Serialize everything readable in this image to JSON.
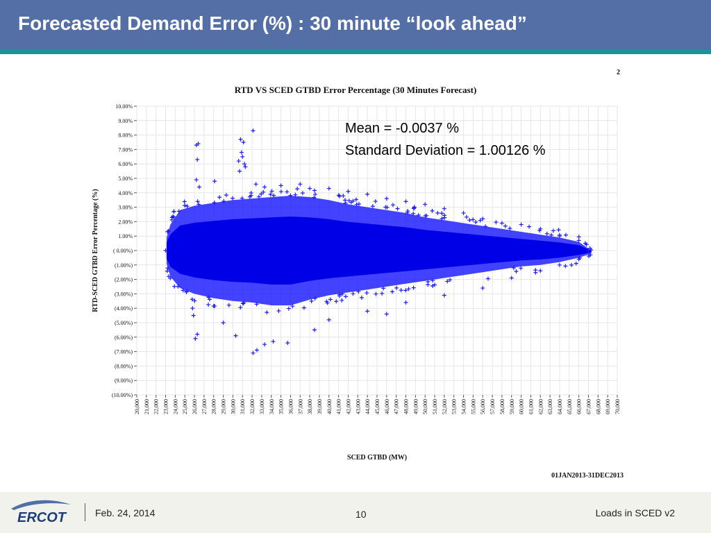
{
  "slide": {
    "title": "Forecasted Demand Error (%) : 30 minute “look ahead”",
    "page_marker": "2"
  },
  "stats": {
    "mean": "Mean = -0.0037 %",
    "std": "Standard Deviation = 1.00126 %"
  },
  "chart_data": {
    "type": "scatter",
    "title": "RTD VS SCED GTBD Error Percentage (30 Minutes Forecast)",
    "xlabel": "SCED GTBD (MW)",
    "ylabel": "RTD-SCED GTBD Error Percentage (%)",
    "xlim": [
      20000,
      70000
    ],
    "ylim": [
      -10,
      10
    ],
    "x_tick_labels": [
      "20,000",
      "21,000",
      "22,000",
      "23,000",
      "24,000",
      "25,000",
      "26,000",
      "27,000",
      "28,000",
      "29,000",
      "30,000",
      "31,000",
      "32,000",
      "33,000",
      "34,000",
      "35,000",
      "36,000",
      "37,000",
      "38,000",
      "39,000",
      "40,000",
      "41,000",
      "42,000",
      "43,000",
      "44,000",
      "45,000",
      "46,000",
      "47,000",
      "48,000",
      "49,000",
      "50,000",
      "51,000",
      "52,000",
      "53,000",
      "54,000",
      "55,000",
      "56,000",
      "57,000",
      "58,000",
      "59,000",
      "60,000",
      "61,000",
      "62,000",
      "63,000",
      "64,000",
      "65,000",
      "66,000",
      "67,000",
      "68,000",
      "69,000",
      "70,000"
    ],
    "y_tick_labels": [
      "10.00%",
      "9.00%",
      "8.00%",
      "7.00%",
      "6.00%",
      "5.00%",
      "4.00%",
      "3.00%",
      "2.00%",
      "1.00%",
      "( 0.00%)",
      "(1.00%)",
      "(2.00%)",
      "(3.00%)",
      "(4.00%)",
      "(5.00%)",
      "(6.00%)",
      "(7.00%)",
      "(8.00%)",
      "(9.00%)",
      "(10.00%)"
    ],
    "date_range": "01JAN2013-31DEC2013",
    "marker": "+",
    "marker_color": "#1a1aff",
    "grid": true,
    "series": [
      {
        "points": [
          [
            26200,
            7.3
          ],
          [
            26400,
            7.4
          ],
          [
            26300,
            6.3
          ],
          [
            30800,
            7.7
          ],
          [
            31100,
            7.5
          ],
          [
            32100,
            8.3
          ],
          [
            30900,
            6.8
          ],
          [
            31000,
            6.5
          ],
          [
            31200,
            6.0
          ],
          [
            30600,
            6.2
          ],
          [
            31300,
            5.8
          ],
          [
            30700,
            5.5
          ],
          [
            26200,
            4.9
          ],
          [
            26500,
            4.4
          ],
          [
            28100,
            4.8
          ],
          [
            32400,
            4.6
          ],
          [
            33300,
            4.4
          ],
          [
            35000,
            4.5
          ],
          [
            37000,
            4.6
          ],
          [
            38000,
            4.3
          ],
          [
            40000,
            4.3
          ],
          [
            42000,
            4.1
          ],
          [
            44000,
            3.9
          ],
          [
            46000,
            3.6
          ],
          [
            48000,
            3.4
          ],
          [
            50000,
            3.2
          ],
          [
            52000,
            2.9
          ],
          [
            54000,
            2.6
          ],
          [
            56000,
            2.2
          ],
          [
            58000,
            1.9
          ],
          [
            60000,
            1.8
          ],
          [
            62000,
            1.5
          ],
          [
            64000,
            1.0
          ],
          [
            66000,
            0.7
          ],
          [
            25800,
            -4.0
          ],
          [
            25900,
            -4.5
          ],
          [
            26300,
            -5.8
          ],
          [
            26100,
            -6.1
          ],
          [
            29000,
            -5.0
          ],
          [
            30300,
            -5.9
          ],
          [
            32100,
            -7.1
          ],
          [
            32500,
            -6.9
          ],
          [
            33300,
            -6.5
          ],
          [
            34200,
            -6.3
          ],
          [
            35700,
            -6.4
          ],
          [
            38500,
            -5.5
          ],
          [
            40000,
            -4.8
          ],
          [
            44000,
            -4.2
          ],
          [
            46000,
            -4.4
          ],
          [
            48000,
            -3.6
          ],
          [
            52000,
            -3.1
          ],
          [
            56000,
            -2.6
          ],
          [
            59000,
            -1.9
          ],
          [
            62000,
            -1.4
          ],
          [
            64000,
            -1.0
          ],
          [
            66000,
            -0.6
          ],
          [
            67000,
            0.0
          ],
          [
            67200,
            -0.3
          ],
          [
            23000,
            0.0
          ]
        ]
      }
    ]
  },
  "footer": {
    "logo": "ERCOT",
    "date": "Feb. 24, 2014",
    "page": "10",
    "title": "Loads in SCED v2"
  }
}
